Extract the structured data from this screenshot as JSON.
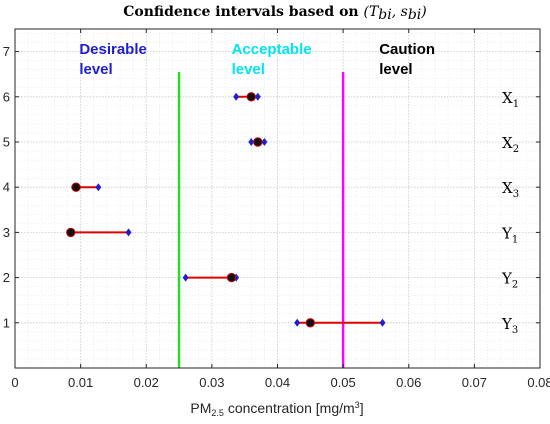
{
  "chart_data": {
    "type": "scatter",
    "title": {
      "prefix": "Confidence intervals based on ",
      "math": "(T",
      "sub1": "bi",
      "sep": ", s",
      "sub2": "bi",
      "close": ")"
    },
    "xlabel": {
      "prefix": "PM",
      "sub": "2.5",
      "middle": " concentration [mg/m",
      "sup": "3",
      "suffix": "]"
    },
    "xlim": [
      0,
      0.08
    ],
    "ylim": [
      0,
      7.5
    ],
    "x_ticks": [
      "0",
      "0.01",
      "0.02",
      "0.03",
      "0.04",
      "0.05",
      "0.06",
      "0.07",
      "0.08"
    ],
    "y_ticks": [
      "1",
      "2",
      "3",
      "4",
      "5",
      "6",
      "7"
    ],
    "grid": "major and minor, dotted",
    "zones": [
      {
        "label": [
          "Desirable",
          "level"
        ],
        "color": "#1f1fd1"
      },
      {
        "label": [
          "Acceptable",
          "level"
        ],
        "color": "#00e5ee"
      },
      {
        "label": [
          "Caution",
          "level"
        ],
        "color": "#000000"
      }
    ],
    "thresholds": [
      {
        "x": 0.025,
        "color": "#22dd22"
      },
      {
        "x": 0.05,
        "color": "#ff00ff"
      }
    ],
    "series": [
      {
        "label": "X",
        "sub": "1",
        "y": 6,
        "lower": 0.0337,
        "upper": 0.037,
        "estimate": 0.036
      },
      {
        "label": "X",
        "sub": "2",
        "y": 5,
        "lower": 0.036,
        "upper": 0.038,
        "estimate": 0.037
      },
      {
        "label": "X",
        "sub": "3",
        "y": 4,
        "lower": 0.009,
        "upper": 0.0127,
        "estimate": 0.0093
      },
      {
        "label": "Y",
        "sub": "1",
        "y": 3,
        "lower": 0.0085,
        "upper": 0.0173,
        "estimate": 0.0085
      },
      {
        "label": "Y",
        "sub": "2",
        "y": 2,
        "lower": 0.026,
        "upper": 0.0337,
        "estimate": 0.033
      },
      {
        "label": "Y",
        "sub": "3",
        "y": 1,
        "lower": 0.043,
        "upper": 0.056,
        "estimate": 0.045
      }
    ],
    "colors": {
      "interval": "#e00000",
      "bound_marker": "#1f1fd1",
      "estimate_fill": "#111111",
      "estimate_edge": "#cc0000"
    }
  }
}
